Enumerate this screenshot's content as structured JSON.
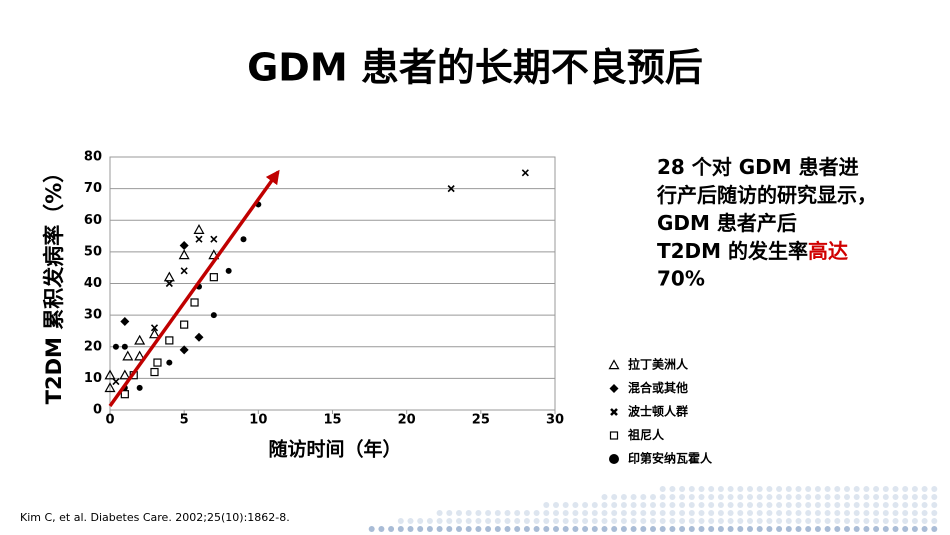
{
  "header": {
    "title": "GDM 患者的长期不良预后"
  },
  "chart_data": {
    "type": "scatter",
    "x_label": "随访时间（年）",
    "y_label": "T2DM 累积发病率（%）",
    "xlim": [
      0,
      30
    ],
    "xticks": [
      0,
      5,
      10,
      15,
      20,
      25,
      30
    ],
    "ylim": [
      0,
      80
    ],
    "yticks": [
      0,
      10,
      20,
      30,
      40,
      50,
      60,
      70,
      80
    ],
    "grid": true,
    "series": [
      {
        "name": "拉丁美洲人",
        "marker": "triangle",
        "color": "#000000",
        "x": [
          0,
          0,
          1,
          1.2,
          2,
          2,
          3,
          4,
          5,
          6,
          7
        ],
        "values": [
          7,
          11,
          11,
          17,
          22,
          17,
          24,
          42,
          49,
          57,
          49
        ]
      },
      {
        "name": "混合或其他",
        "marker": "diamond",
        "color": "#000000",
        "x": [
          1,
          5,
          5,
          6
        ],
        "values": [
          28,
          52,
          19,
          23
        ]
      },
      {
        "name": "波士顿人群",
        "marker": "cross",
        "color": "#000000",
        "x": [
          0.4,
          3,
          4,
          5,
          6,
          7,
          23,
          28
        ],
        "values": [
          9,
          26,
          40,
          44,
          54,
          54,
          70,
          75
        ]
      },
      {
        "name": "祖尼人",
        "marker": "square",
        "color": "#000000",
        "x": [
          1,
          1.6,
          3,
          3.2,
          4,
          5,
          5.7,
          7
        ],
        "values": [
          5,
          11,
          12,
          15,
          22,
          27,
          34,
          42
        ]
      },
      {
        "name": "印第安纳瓦霍人",
        "marker": "circle",
        "color": "#000000",
        "x": [
          0.4,
          1,
          1,
          2,
          4,
          6,
          7,
          8,
          9,
          10
        ],
        "values": [
          20,
          20,
          7,
          7,
          15,
          39,
          30,
          44,
          54,
          65
        ]
      }
    ]
  },
  "note": {
    "lines": [
      "28 个对 GDM 患者进",
      "行产后随访的研究显示，",
      "GDM 患者产后",
      "T2DM 的发生率"
    ],
    "highlight": [
      "高达",
      "70%"
    ]
  },
  "citation": "Kim C, et al. Diabetes Care. 2002;25(10):1862-8."
}
